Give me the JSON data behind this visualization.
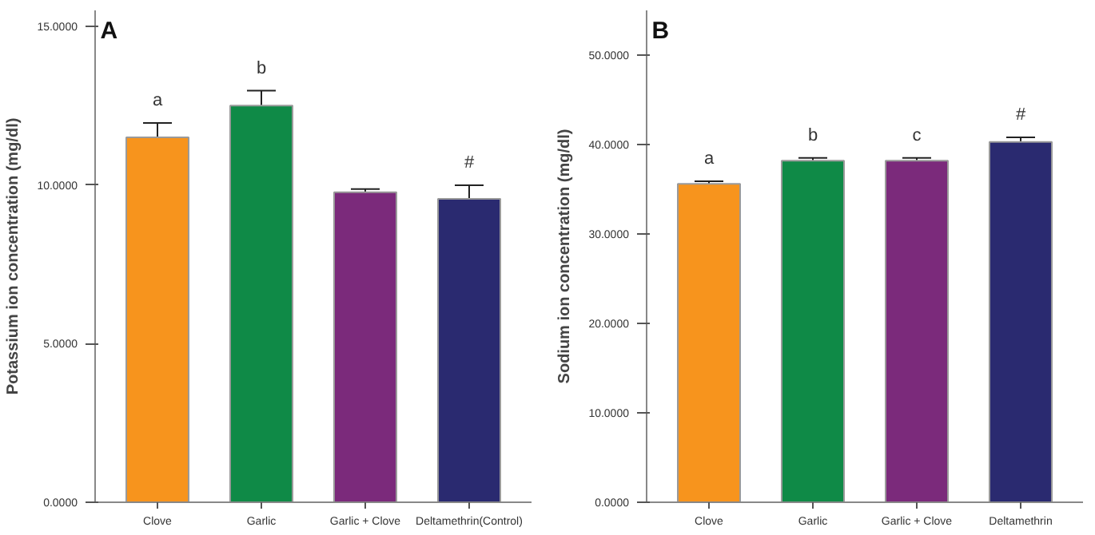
{
  "chart_data": [
    {
      "type": "bar",
      "title": "A",
      "ylabel": "Potassium ion concentration (mg/dl)",
      "categories": [
        "Clove",
        "Garlic",
        "Garlic + Clove",
        "Deltamethrin(Control)"
      ],
      "values": [
        11.5,
        12.5,
        9.77,
        9.56
      ],
      "errors": [
        0.45,
        0.47,
        0.1,
        0.43
      ],
      "colors": [
        "#f7941d",
        "#0f8a47",
        "#7b2a7b",
        "#2a2a70"
      ],
      "ylim": [
        0,
        15.5
      ],
      "yticks": [
        {
          "value": 0,
          "label": "0.0000"
        },
        {
          "value": 5,
          "label": "5.0000"
        },
        {
          "value": 10,
          "label": "10.0000"
        },
        {
          "value": 15,
          "label": "15.0000"
        }
      ],
      "value_labels": [
        "a",
        "b",
        null,
        "#"
      ]
    },
    {
      "type": "bar",
      "title": "B",
      "ylabel": "Sodium ion concentration (mg/dl)",
      "categories": [
        "Clove",
        "Garlic",
        "Garlic + Clove",
        "Deltamethrin"
      ],
      "values": [
        35.6,
        38.2,
        38.2,
        40.3
      ],
      "errors": [
        0.3,
        0.3,
        0.3,
        0.5
      ],
      "colors": [
        "#f7941d",
        "#0f8a47",
        "#7b2a7b",
        "#2a2a70"
      ],
      "ylim": [
        0,
        55
      ],
      "yticks": [
        {
          "value": 0,
          "label": "0.0000"
        },
        {
          "value": 10,
          "label": "10.0000"
        },
        {
          "value": 20,
          "label": "20.0000"
        },
        {
          "value": 30,
          "label": "30.0000"
        },
        {
          "value": 40,
          "label": "40.0000"
        },
        {
          "value": 50,
          "label": "50.0000"
        }
      ],
      "value_labels": [
        "a",
        "b",
        "c",
        "#"
      ]
    }
  ]
}
